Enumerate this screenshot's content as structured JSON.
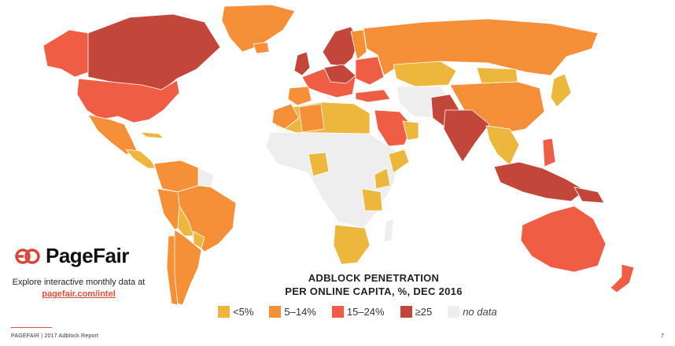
{
  "brand": {
    "name": "PageFair",
    "accent": "#d9463a"
  },
  "explore": {
    "text": "Explore interactive monthly data at",
    "link": "pagefair.com/intel"
  },
  "map": {
    "title_line1": "ADBLOCK PENETRATION",
    "title_line2": "PER ONLINE CAPITA, %, DEC 2016",
    "colors": {
      "lt5": "#ecb73c",
      "5to14": "#f58f38",
      "15to24": "#ef5d45",
      "gte25": "#c2473a",
      "nodata": "#eeeeee"
    }
  },
  "legend": [
    {
      "label": "<5%",
      "color": "#ecb73c"
    },
    {
      "label": "5–14%",
      "color": "#f58f38"
    },
    {
      "label": "15–24%",
      "color": "#ef5d45"
    },
    {
      "label": "≥25",
      "color": "#c2473a"
    },
    {
      "label": "no data",
      "color": "#eeeeee"
    }
  ],
  "footer": {
    "text": "PAGEFAIR | 2017 Adblock Report",
    "page": "7"
  }
}
